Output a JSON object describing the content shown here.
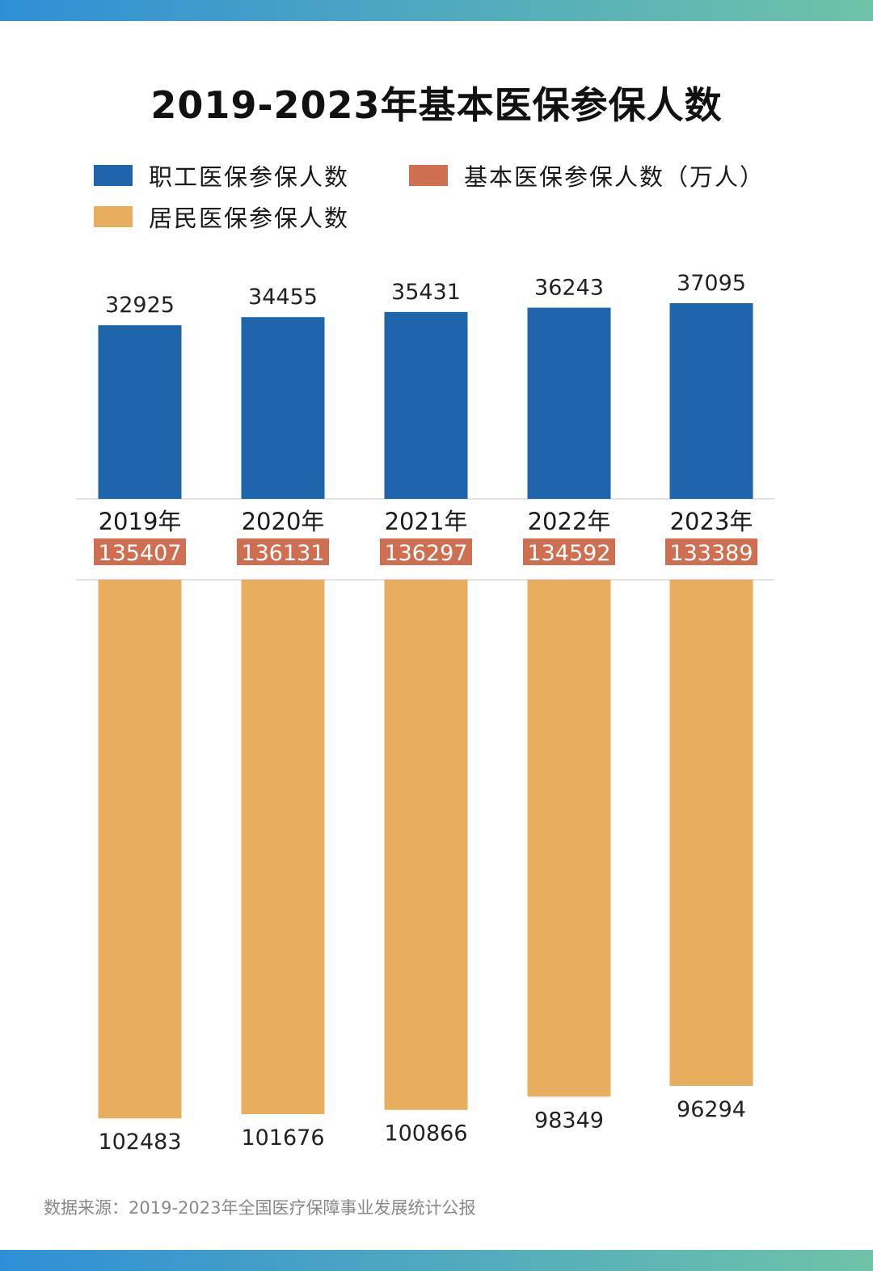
{
  "colors": {
    "employee": "#1f65ab",
    "resident": "#e8ae5e",
    "total": "#cf6f51",
    "stripe_start": "#2f8fd6",
    "stripe_end": "#6fc3a8"
  },
  "title": "2019-2023年基本医保参保人数",
  "legend": {
    "employee": "职工医保参保人数",
    "total": "基本医保参保人数（万人）",
    "resident": "居民医保参保人数"
  },
  "source": "数据来源：2019-2023年全国医疗保障事业发展统计公报",
  "chart_data": {
    "type": "bar",
    "title": "2019-2023年基本医保参保人数",
    "categories": [
      "2019年",
      "2020年",
      "2021年",
      "2022年",
      "2023年"
    ],
    "series": [
      {
        "name": "职工医保参保人数",
        "values": [
          32925,
          34455,
          35431,
          36243,
          37095
        ]
      },
      {
        "name": "居民医保参保人数",
        "values": [
          102483,
          101676,
          100866,
          98349,
          96294
        ]
      },
      {
        "name": "基本医保参保人数（万人）",
        "values": [
          135407,
          136131,
          136297,
          134592,
          133389
        ]
      }
    ],
    "legend": "top-left",
    "grid": false
  }
}
